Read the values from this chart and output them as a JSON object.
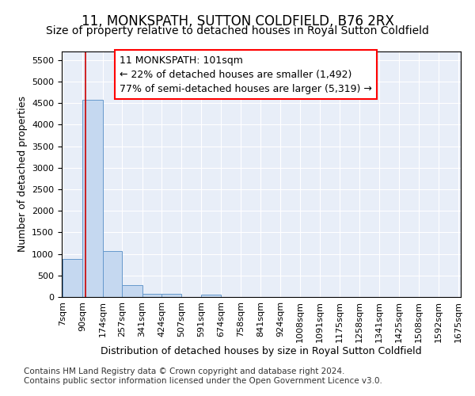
{
  "title": "11, MONKSPATH, SUTTON COLDFIELD, B76 2RX",
  "subtitle": "Size of property relative to detached houses in Royal Sutton Coldfield",
  "xlabel": "Distribution of detached houses by size in Royal Sutton Coldfield",
  "ylabel": "Number of detached properties",
  "bar_color": "#c5d8f0",
  "bar_edge_color": "#6699cc",
  "background_color": "#e8eef8",
  "annotation_text": "11 MONKSPATH: 101sqm\n← 22% of detached houses are smaller (1,492)\n77% of semi-detached houses are larger (5,319) →",
  "property_size": 101,
  "bin_edges": [
    7,
    90,
    174,
    257,
    341,
    424,
    507,
    591,
    674,
    758,
    841,
    924,
    1008,
    1091,
    1175,
    1258,
    1341,
    1425,
    1508,
    1592,
    1675
  ],
  "bin_labels": [
    "7sqm",
    "90sqm",
    "174sqm",
    "257sqm",
    "341sqm",
    "424sqm",
    "507sqm",
    "591sqm",
    "674sqm",
    "758sqm",
    "841sqm",
    "924sqm",
    "1008sqm",
    "1091sqm",
    "1175sqm",
    "1258sqm",
    "1341sqm",
    "1425sqm",
    "1508sqm",
    "1592sqm",
    "1675sqm"
  ],
  "counts": [
    880,
    4570,
    1060,
    285,
    75,
    75,
    0,
    50,
    0,
    0,
    0,
    0,
    0,
    0,
    0,
    0,
    0,
    0,
    0,
    0
  ],
  "ylim": [
    0,
    5700
  ],
  "yticks": [
    0,
    500,
    1000,
    1500,
    2000,
    2500,
    3000,
    3500,
    4000,
    4500,
    5000,
    5500
  ],
  "red_line_color": "#cc0000",
  "footer1": "Contains HM Land Registry data © Crown copyright and database right 2024.",
  "footer2": "Contains public sector information licensed under the Open Government Licence v3.0.",
  "title_fontsize": 12,
  "subtitle_fontsize": 10,
  "axis_label_fontsize": 9,
  "tick_fontsize": 8,
  "annot_fontsize": 9,
  "footer_fontsize": 7.5
}
